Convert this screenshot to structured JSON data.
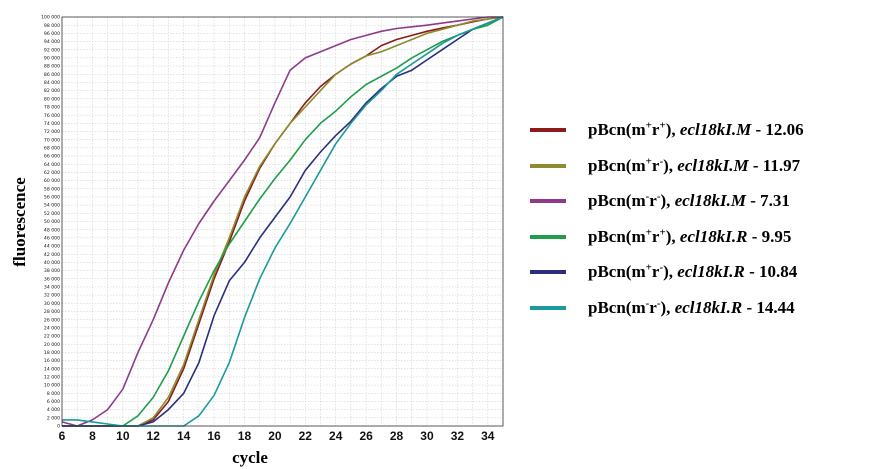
{
  "chart_data": {
    "type": "line",
    "xlabel": "cycle",
    "ylabel": "fluorescence",
    "xlim": [
      6,
      35
    ],
    "ylim": [
      0,
      100000
    ],
    "x_ticks": [
      6,
      8,
      10,
      12,
      14,
      16,
      18,
      20,
      22,
      24,
      26,
      28,
      30,
      32,
      34
    ],
    "y_tick_step": 2000,
    "y_tick_labels_format": "space-thousands",
    "grid": true,
    "legend_position": "right",
    "series": [
      {
        "name": "pBcn(m+r+), ecl18kI.M - 12.06",
        "label_parts": {
          "plasmid": "pBcn(m",
          "sup1": "+",
          "mid": "r",
          "sup2": "+",
          "sep": "), ",
          "gene": "ecl18kI.M",
          "value": " - 12.06"
        },
        "color": "#8B1A1A",
        "x": [
          6,
          7,
          8,
          9,
          10,
          11,
          12,
          13,
          14,
          15,
          16,
          17,
          18,
          19,
          20,
          21,
          22,
          23,
          24,
          25,
          26,
          27,
          28,
          29,
          30,
          31,
          32,
          33,
          34,
          35
        ],
        "y": [
          0,
          0,
          0,
          0,
          0,
          0,
          1500,
          6000,
          14000,
          25000,
          36000,
          45000,
          55000,
          63000,
          69000,
          74000,
          79000,
          83000,
          86000,
          88500,
          90500,
          93000,
          94500,
          95500,
          96500,
          97300,
          98000,
          98800,
          99500,
          100000
        ]
      },
      {
        "name": "pBcn(m+r-), ecl18kI.M - 11.97",
        "label_parts": {
          "plasmid": "pBcn(m",
          "sup1": "+",
          "mid": "r",
          "sup2": "-",
          "sep": "), ",
          "gene": "ecl18kI.M",
          "value": " - 11.97"
        },
        "color": "#8C8C2E",
        "x": [
          6,
          7,
          8,
          9,
          10,
          11,
          12,
          13,
          14,
          15,
          16,
          17,
          18,
          19,
          20,
          21,
          22,
          23,
          24,
          25,
          26,
          27,
          28,
          29,
          30,
          31,
          32,
          33,
          34,
          35
        ],
        "y": [
          0,
          0,
          0,
          0,
          0,
          0,
          2000,
          7000,
          15000,
          26000,
          37000,
          46000,
          56000,
          63500,
          69000,
          74000,
          78000,
          82000,
          86000,
          88500,
          90500,
          91500,
          93000,
          94500,
          96000,
          97000,
          98000,
          99000,
          99500,
          100000
        ]
      },
      {
        "name": "pBcn(m-r-), ecl18kI.M - 7.31",
        "label_parts": {
          "plasmid": "pBcn(m",
          "sup1": "-",
          "mid": "r",
          "sup2": "-",
          "sep": "), ",
          "gene": "ecl18kI.M",
          "value": " - 7.31"
        },
        "color": "#8E3A8C",
        "x": [
          6,
          7,
          8,
          9,
          10,
          11,
          12,
          13,
          14,
          15,
          16,
          17,
          18,
          19,
          20,
          21,
          22,
          23,
          24,
          25,
          26,
          27,
          28,
          29,
          30,
          31,
          32,
          33,
          34,
          35
        ],
        "y": [
          1000,
          0,
          1500,
          4000,
          9000,
          18000,
          26000,
          35000,
          43000,
          49500,
          55000,
          60000,
          65000,
          70500,
          79000,
          87000,
          90000,
          91500,
          93000,
          94500,
          95500,
          96500,
          97200,
          97600,
          98000,
          98500,
          99000,
          99500,
          100000,
          100000
        ]
      },
      {
        "name": "pBcn(m+r+), ecl18kI.R - 9.95",
        "label_parts": {
          "plasmid": "pBcn(m",
          "sup1": "+",
          "mid": "r",
          "sup2": "+",
          "sep": "), ",
          "gene": "ecl18kI.R",
          "value": " - 9.95"
        },
        "color": "#1E9E4A",
        "x": [
          6,
          7,
          8,
          9,
          10,
          11,
          12,
          13,
          14,
          15,
          16,
          17,
          18,
          19,
          20,
          21,
          22,
          23,
          24,
          25,
          26,
          27,
          28,
          29,
          30,
          31,
          32,
          33,
          34,
          35
        ],
        "y": [
          0,
          0,
          0,
          0,
          0,
          2500,
          7000,
          13500,
          22000,
          30500,
          38000,
          44500,
          50000,
          55500,
          60500,
          65000,
          70000,
          74000,
          77000,
          80500,
          83500,
          85500,
          87500,
          90000,
          92000,
          94000,
          95500,
          97000,
          98000,
          100000
        ]
      },
      {
        "name": "pBcn(m+r-), ecl18kI.R - 10.84",
        "label_parts": {
          "plasmid": "pBcn(m",
          "sup1": "+",
          "mid": "r",
          "sup2": "-",
          "sep": "), ",
          "gene": "ecl18kI.R",
          "value": " - 10.84"
        },
        "color": "#2B2E80",
        "x": [
          6,
          7,
          8,
          9,
          10,
          11,
          12,
          13,
          14,
          15,
          16,
          17,
          18,
          19,
          20,
          21,
          22,
          23,
          24,
          25,
          26,
          27,
          28,
          29,
          30,
          31,
          32,
          33,
          34,
          35
        ],
        "y": [
          0,
          0,
          0,
          0,
          0,
          0,
          1000,
          4000,
          8000,
          15500,
          27000,
          35500,
          40000,
          46000,
          51000,
          56000,
          62500,
          67000,
          71000,
          74500,
          79000,
          82500,
          85500,
          87000,
          89500,
          92000,
          94500,
          97000,
          98500,
          100000
        ]
      },
      {
        "name": "pBcn(m-r-), ecl18kI.R - 14.44",
        "label_parts": {
          "plasmid": "pBcn(m",
          "sup1": "-",
          "mid": "r",
          "sup2": "-",
          "sep": "), ",
          "gene": "ecl18kI.R",
          "value": " - 14.44"
        },
        "color": "#1A9A9A",
        "x": [
          6,
          7,
          8,
          9,
          10,
          11,
          12,
          13,
          14,
          15,
          16,
          17,
          18,
          19,
          20,
          21,
          22,
          23,
          24,
          25,
          26,
          27,
          28,
          29,
          30,
          31,
          32,
          33,
          34,
          35
        ],
        "y": [
          1500,
          1500,
          1000,
          500,
          0,
          0,
          0,
          0,
          0,
          2500,
          7500,
          15500,
          26500,
          36000,
          43500,
          49500,
          56000,
          62500,
          69000,
          74000,
          78500,
          82000,
          86000,
          88500,
          91000,
          93500,
          95500,
          97000,
          98500,
          100000
        ]
      }
    ]
  }
}
